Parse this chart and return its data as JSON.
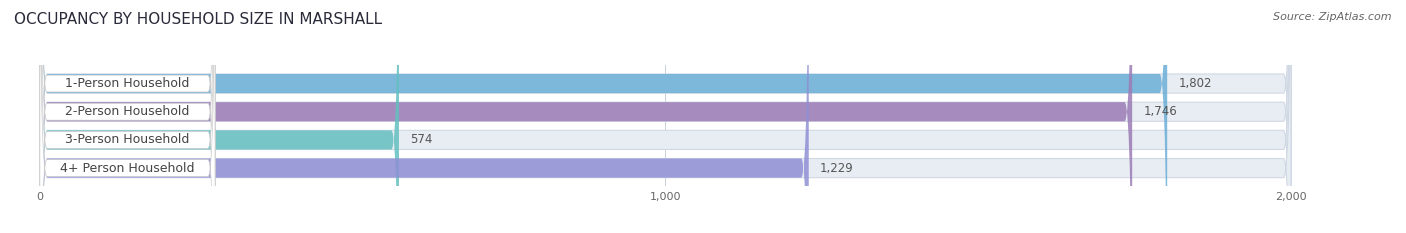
{
  "title": "OCCUPANCY BY HOUSEHOLD SIZE IN MARSHALL",
  "source": "Source: ZipAtlas.com",
  "categories": [
    "1-Person Household",
    "2-Person Household",
    "3-Person Household",
    "4+ Person Household"
  ],
  "values": [
    1802,
    1746,
    574,
    1229
  ],
  "bar_colors": [
    "#6aaed6",
    "#9b7bb5",
    "#63bfc0",
    "#8f8fd4"
  ],
  "xlim": [
    -30,
    2150
  ],
  "x_max_display": 2000,
  "xticks": [
    0,
    1000,
    2000
  ],
  "xticklabels": [
    "0",
    "1,000",
    "2,000"
  ],
  "label_fontsize": 9,
  "title_fontsize": 11,
  "source_fontsize": 8,
  "value_fontsize": 8.5,
  "bg_color": "#ffffff",
  "bar_bg_color": "#e8edf3",
  "bar_bg_edge_color": "#d0d8e4",
  "label_pill_color": "#ffffff",
  "label_text_color": "#444444",
  "value_text_color": "#555555",
  "grid_color": "#c8d0da"
}
